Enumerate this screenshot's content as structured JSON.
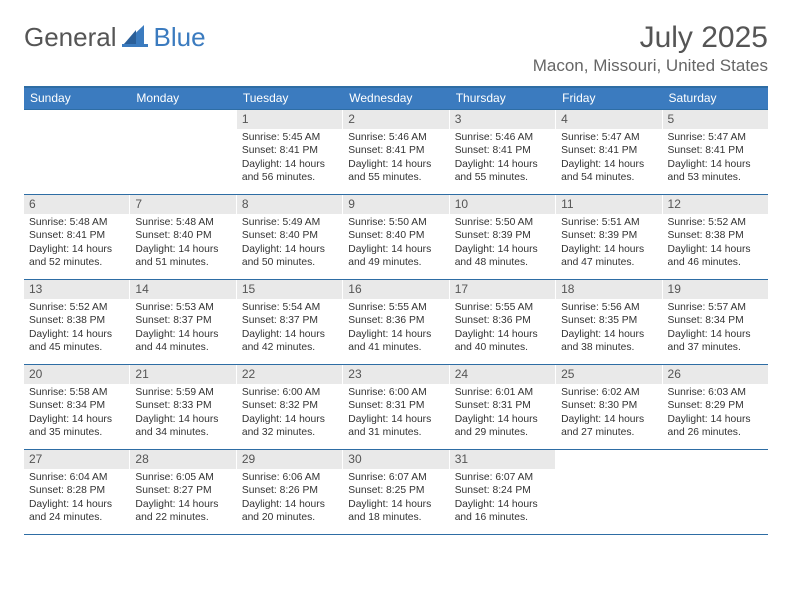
{
  "brand": {
    "text_general": "General",
    "text_blue": "Blue"
  },
  "header": {
    "title": "July 2025",
    "location": "Macon, Missouri, United States"
  },
  "theme": {
    "accent": "#3b7bbf",
    "accent_border": "#2e6da4",
    "daynum_bg": "#e9e9e9",
    "title_color": "#555555",
    "location_color": "#666666",
    "text_color": "#333333",
    "background": "#ffffff"
  },
  "calendar": {
    "weekdays": [
      "Sunday",
      "Monday",
      "Tuesday",
      "Wednesday",
      "Thursday",
      "Friday",
      "Saturday"
    ],
    "weeks": [
      [
        null,
        null,
        {
          "n": "1",
          "sunrise": "5:45 AM",
          "sunset": "8:41 PM",
          "daylight": "14 hours and 56 minutes."
        },
        {
          "n": "2",
          "sunrise": "5:46 AM",
          "sunset": "8:41 PM",
          "daylight": "14 hours and 55 minutes."
        },
        {
          "n": "3",
          "sunrise": "5:46 AM",
          "sunset": "8:41 PM",
          "daylight": "14 hours and 55 minutes."
        },
        {
          "n": "4",
          "sunrise": "5:47 AM",
          "sunset": "8:41 PM",
          "daylight": "14 hours and 54 minutes."
        },
        {
          "n": "5",
          "sunrise": "5:47 AM",
          "sunset": "8:41 PM",
          "daylight": "14 hours and 53 minutes."
        }
      ],
      [
        {
          "n": "6",
          "sunrise": "5:48 AM",
          "sunset": "8:41 PM",
          "daylight": "14 hours and 52 minutes."
        },
        {
          "n": "7",
          "sunrise": "5:48 AM",
          "sunset": "8:40 PM",
          "daylight": "14 hours and 51 minutes."
        },
        {
          "n": "8",
          "sunrise": "5:49 AM",
          "sunset": "8:40 PM",
          "daylight": "14 hours and 50 minutes."
        },
        {
          "n": "9",
          "sunrise": "5:50 AM",
          "sunset": "8:40 PM",
          "daylight": "14 hours and 49 minutes."
        },
        {
          "n": "10",
          "sunrise": "5:50 AM",
          "sunset": "8:39 PM",
          "daylight": "14 hours and 48 minutes."
        },
        {
          "n": "11",
          "sunrise": "5:51 AM",
          "sunset": "8:39 PM",
          "daylight": "14 hours and 47 minutes."
        },
        {
          "n": "12",
          "sunrise": "5:52 AM",
          "sunset": "8:38 PM",
          "daylight": "14 hours and 46 minutes."
        }
      ],
      [
        {
          "n": "13",
          "sunrise": "5:52 AM",
          "sunset": "8:38 PM",
          "daylight": "14 hours and 45 minutes."
        },
        {
          "n": "14",
          "sunrise": "5:53 AM",
          "sunset": "8:37 PM",
          "daylight": "14 hours and 44 minutes."
        },
        {
          "n": "15",
          "sunrise": "5:54 AM",
          "sunset": "8:37 PM",
          "daylight": "14 hours and 42 minutes."
        },
        {
          "n": "16",
          "sunrise": "5:55 AM",
          "sunset": "8:36 PM",
          "daylight": "14 hours and 41 minutes."
        },
        {
          "n": "17",
          "sunrise": "5:55 AM",
          "sunset": "8:36 PM",
          "daylight": "14 hours and 40 minutes."
        },
        {
          "n": "18",
          "sunrise": "5:56 AM",
          "sunset": "8:35 PM",
          "daylight": "14 hours and 38 minutes."
        },
        {
          "n": "19",
          "sunrise": "5:57 AM",
          "sunset": "8:34 PM",
          "daylight": "14 hours and 37 minutes."
        }
      ],
      [
        {
          "n": "20",
          "sunrise": "5:58 AM",
          "sunset": "8:34 PM",
          "daylight": "14 hours and 35 minutes."
        },
        {
          "n": "21",
          "sunrise": "5:59 AM",
          "sunset": "8:33 PM",
          "daylight": "14 hours and 34 minutes."
        },
        {
          "n": "22",
          "sunrise": "6:00 AM",
          "sunset": "8:32 PM",
          "daylight": "14 hours and 32 minutes."
        },
        {
          "n": "23",
          "sunrise": "6:00 AM",
          "sunset": "8:31 PM",
          "daylight": "14 hours and 31 minutes."
        },
        {
          "n": "24",
          "sunrise": "6:01 AM",
          "sunset": "8:31 PM",
          "daylight": "14 hours and 29 minutes."
        },
        {
          "n": "25",
          "sunrise": "6:02 AM",
          "sunset": "8:30 PM",
          "daylight": "14 hours and 27 minutes."
        },
        {
          "n": "26",
          "sunrise": "6:03 AM",
          "sunset": "8:29 PM",
          "daylight": "14 hours and 26 minutes."
        }
      ],
      [
        {
          "n": "27",
          "sunrise": "6:04 AM",
          "sunset": "8:28 PM",
          "daylight": "14 hours and 24 minutes."
        },
        {
          "n": "28",
          "sunrise": "6:05 AM",
          "sunset": "8:27 PM",
          "daylight": "14 hours and 22 minutes."
        },
        {
          "n": "29",
          "sunrise": "6:06 AM",
          "sunset": "8:26 PM",
          "daylight": "14 hours and 20 minutes."
        },
        {
          "n": "30",
          "sunrise": "6:07 AM",
          "sunset": "8:25 PM",
          "daylight": "14 hours and 18 minutes."
        },
        {
          "n": "31",
          "sunrise": "6:07 AM",
          "sunset": "8:24 PM",
          "daylight": "14 hours and 16 minutes."
        },
        null,
        null
      ]
    ],
    "labels": {
      "sunrise": "Sunrise:",
      "sunset": "Sunset:",
      "daylight": "Daylight:"
    }
  }
}
